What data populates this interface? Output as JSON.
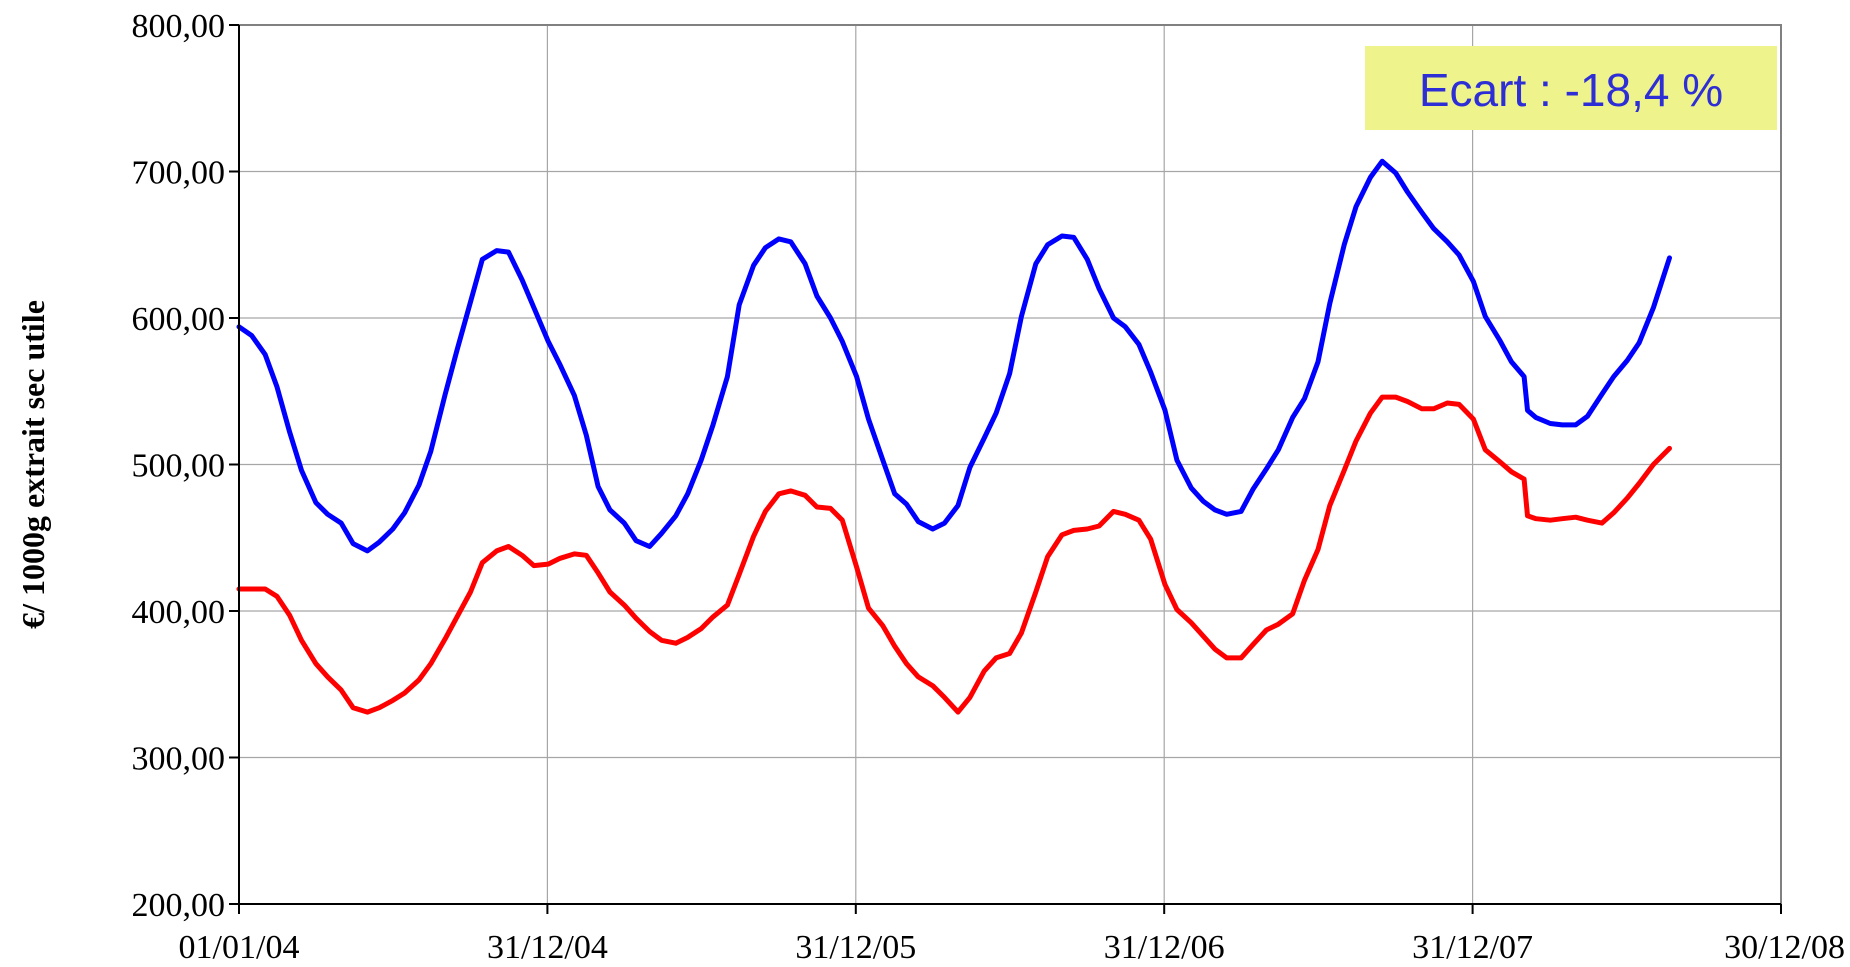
{
  "chart_data": {
    "type": "line",
    "title": "",
    "xlabel": "",
    "ylabel": "€/ 1000g extrait sec utile",
    "x_type": "date",
    "xlim": [
      "2004-01-01",
      "2008-12-30"
    ],
    "ylim": [
      200,
      800
    ],
    "y_ticks": [
      200,
      300,
      400,
      500,
      600,
      700,
      800
    ],
    "y_tick_labels": [
      "200,00",
      "300,00",
      "400,00",
      "500,00",
      "600,00",
      "700,00",
      "800,00"
    ],
    "x_ticks": [
      "2004-01-01",
      "2004-12-31",
      "2005-12-31",
      "2006-12-31",
      "2007-12-31",
      "2008-12-30"
    ],
    "x_tick_labels": [
      "01/01/04",
      "31/12/04",
      "31/12/05",
      "31/12/06",
      "31/12/07",
      "30/12/08"
    ],
    "grid": true,
    "legend": "none",
    "annotation": {
      "text": "Ecart : -18,4 %",
      "position": "top-right",
      "background": "#eef38c",
      "color": "#2e2ed6"
    },
    "series": [
      {
        "color": "#0000ff",
        "points": [
          [
            "2004-01-01",
            594
          ],
          [
            "2004-01-16",
            588
          ],
          [
            "2004-02-01",
            575
          ],
          [
            "2004-02-15",
            553
          ],
          [
            "2004-03-01",
            522
          ],
          [
            "2004-03-15",
            496
          ],
          [
            "2004-04-01",
            474
          ],
          [
            "2004-04-15",
            466
          ],
          [
            "2004-05-01",
            460
          ],
          [
            "2004-05-15",
            446
          ],
          [
            "2004-06-01",
            441
          ],
          [
            "2004-06-15",
            447
          ],
          [
            "2004-07-01",
            456
          ],
          [
            "2004-07-15",
            467
          ],
          [
            "2004-08-01",
            486
          ],
          [
            "2004-08-15",
            509
          ],
          [
            "2004-09-01",
            548
          ],
          [
            "2004-09-15",
            578
          ],
          [
            "2004-10-01",
            611
          ],
          [
            "2004-10-15",
            640
          ],
          [
            "2004-11-01",
            646
          ],
          [
            "2004-11-15",
            645
          ],
          [
            "2004-12-01",
            626
          ],
          [
            "2004-12-15",
            607
          ],
          [
            "2005-01-01",
            584
          ],
          [
            "2005-01-15",
            568
          ],
          [
            "2005-02-01",
            547
          ],
          [
            "2005-02-15",
            520
          ],
          [
            "2005-03-01",
            485
          ],
          [
            "2005-03-15",
            469
          ],
          [
            "2005-04-01",
            460
          ],
          [
            "2005-04-15",
            448
          ],
          [
            "2005-05-01",
            444
          ],
          [
            "2005-05-15",
            453
          ],
          [
            "2005-06-01",
            465
          ],
          [
            "2005-06-15",
            480
          ],
          [
            "2005-07-01",
            503
          ],
          [
            "2005-07-15",
            527
          ],
          [
            "2005-08-01",
            560
          ],
          [
            "2005-08-15",
            609
          ],
          [
            "2005-09-01",
            636
          ],
          [
            "2005-09-15",
            648
          ],
          [
            "2005-10-01",
            654
          ],
          [
            "2005-10-15",
            652
          ],
          [
            "2005-11-01",
            637
          ],
          [
            "2005-11-15",
            615
          ],
          [
            "2005-12-01",
            600
          ],
          [
            "2005-12-15",
            584
          ],
          [
            "2006-01-01",
            560
          ],
          [
            "2006-01-15",
            531
          ],
          [
            "2006-02-01",
            503
          ],
          [
            "2006-02-15",
            480
          ],
          [
            "2006-03-01",
            473
          ],
          [
            "2006-03-15",
            461
          ],
          [
            "2006-04-01",
            456
          ],
          [
            "2006-04-15",
            460
          ],
          [
            "2006-05-01",
            472
          ],
          [
            "2006-05-15",
            498
          ],
          [
            "2006-06-01",
            518
          ],
          [
            "2006-06-15",
            535
          ],
          [
            "2006-07-01",
            562
          ],
          [
            "2006-07-15",
            601
          ],
          [
            "2006-08-01",
            637
          ],
          [
            "2006-08-15",
            650
          ],
          [
            "2006-09-01",
            656
          ],
          [
            "2006-09-15",
            655
          ],
          [
            "2006-10-01",
            640
          ],
          [
            "2006-10-15",
            620
          ],
          [
            "2006-11-01",
            600
          ],
          [
            "2006-11-15",
            594
          ],
          [
            "2006-12-01",
            582
          ],
          [
            "2006-12-15",
            563
          ],
          [
            "2007-01-01",
            537
          ],
          [
            "2007-01-15",
            503
          ],
          [
            "2007-02-01",
            484
          ],
          [
            "2007-02-15",
            475
          ],
          [
            "2007-03-01",
            469
          ],
          [
            "2007-03-15",
            466
          ],
          [
            "2007-04-01",
            468
          ],
          [
            "2007-04-15",
            483
          ],
          [
            "2007-05-01",
            497
          ],
          [
            "2007-05-15",
            510
          ],
          [
            "2007-06-01",
            532
          ],
          [
            "2007-06-15",
            545
          ],
          [
            "2007-07-01",
            570
          ],
          [
            "2007-07-15",
            610
          ],
          [
            "2007-08-01",
            650
          ],
          [
            "2007-08-15",
            676
          ],
          [
            "2007-09-01",
            696
          ],
          [
            "2007-09-15",
            707
          ],
          [
            "2007-10-01",
            699
          ],
          [
            "2007-10-15",
            686
          ],
          [
            "2007-11-01",
            672
          ],
          [
            "2007-11-15",
            661
          ],
          [
            "2007-12-01",
            652
          ],
          [
            "2007-12-15",
            643
          ],
          [
            "2008-01-01",
            625
          ],
          [
            "2008-01-15",
            601
          ],
          [
            "2008-02-01",
            585
          ],
          [
            "2008-02-15",
            570
          ],
          [
            "2008-03-01",
            560
          ],
          [
            "2008-03-05",
            537
          ],
          [
            "2008-03-15",
            532
          ],
          [
            "2008-04-01",
            528
          ],
          [
            "2008-04-15",
            527
          ],
          [
            "2008-05-01",
            527
          ],
          [
            "2008-05-15",
            533
          ],
          [
            "2008-06-01",
            548
          ],
          [
            "2008-06-15",
            560
          ],
          [
            "2008-07-01",
            571
          ],
          [
            "2008-07-15",
            583
          ],
          [
            "2008-08-01",
            607
          ],
          [
            "2008-08-20",
            641
          ]
        ]
      },
      {
        "color": "#ff0000",
        "points": [
          [
            "2004-01-01",
            415
          ],
          [
            "2004-01-15",
            415
          ],
          [
            "2004-02-01",
            415
          ],
          [
            "2004-02-15",
            410
          ],
          [
            "2004-03-01",
            397
          ],
          [
            "2004-03-15",
            380
          ],
          [
            "2004-04-01",
            364
          ],
          [
            "2004-04-15",
            355
          ],
          [
            "2004-05-01",
            346
          ],
          [
            "2004-05-15",
            334
          ],
          [
            "2004-06-01",
            331
          ],
          [
            "2004-06-15",
            334
          ],
          [
            "2004-07-01",
            339
          ],
          [
            "2004-07-15",
            344
          ],
          [
            "2004-08-01",
            353
          ],
          [
            "2004-08-15",
            364
          ],
          [
            "2004-09-01",
            381
          ],
          [
            "2004-09-15",
            396
          ],
          [
            "2004-10-01",
            413
          ],
          [
            "2004-10-15",
            433
          ],
          [
            "2004-11-01",
            441
          ],
          [
            "2004-11-15",
            444
          ],
          [
            "2004-12-01",
            438
          ],
          [
            "2004-12-15",
            431
          ],
          [
            "2005-01-01",
            432
          ],
          [
            "2005-01-15",
            436
          ],
          [
            "2005-02-01",
            439
          ],
          [
            "2005-02-15",
            438
          ],
          [
            "2005-03-01",
            426
          ],
          [
            "2005-03-15",
            413
          ],
          [
            "2005-04-01",
            404
          ],
          [
            "2005-04-15",
            395
          ],
          [
            "2005-05-01",
            386
          ],
          [
            "2005-05-15",
            380
          ],
          [
            "2005-06-01",
            378
          ],
          [
            "2005-06-15",
            382
          ],
          [
            "2005-07-01",
            388
          ],
          [
            "2005-07-15",
            396
          ],
          [
            "2005-08-01",
            404
          ],
          [
            "2005-08-15",
            425
          ],
          [
            "2005-09-01",
            451
          ],
          [
            "2005-09-15",
            468
          ],
          [
            "2005-10-01",
            480
          ],
          [
            "2005-10-15",
            482
          ],
          [
            "2005-11-01",
            479
          ],
          [
            "2005-11-15",
            471
          ],
          [
            "2005-12-01",
            470
          ],
          [
            "2005-12-15",
            462
          ],
          [
            "2006-01-01",
            430
          ],
          [
            "2006-01-15",
            402
          ],
          [
            "2006-02-01",
            390
          ],
          [
            "2006-02-15",
            376
          ],
          [
            "2006-03-01",
            364
          ],
          [
            "2006-03-15",
            355
          ],
          [
            "2006-04-01",
            349
          ],
          [
            "2006-04-15",
            341
          ],
          [
            "2006-05-01",
            331
          ],
          [
            "2006-05-15",
            341
          ],
          [
            "2006-06-01",
            359
          ],
          [
            "2006-06-15",
            368
          ],
          [
            "2006-07-01",
            371
          ],
          [
            "2006-07-15",
            385
          ],
          [
            "2006-08-01",
            413
          ],
          [
            "2006-08-15",
            437
          ],
          [
            "2006-09-01",
            452
          ],
          [
            "2006-09-15",
            455
          ],
          [
            "2006-10-01",
            456
          ],
          [
            "2006-10-15",
            458
          ],
          [
            "2006-11-01",
            468
          ],
          [
            "2006-11-15",
            466
          ],
          [
            "2006-12-01",
            462
          ],
          [
            "2006-12-15",
            449
          ],
          [
            "2007-01-01",
            418
          ],
          [
            "2007-01-15",
            401
          ],
          [
            "2007-02-01",
            392
          ],
          [
            "2007-02-15",
            383
          ],
          [
            "2007-03-01",
            374
          ],
          [
            "2007-03-15",
            368
          ],
          [
            "2007-04-01",
            368
          ],
          [
            "2007-04-15",
            377
          ],
          [
            "2007-05-01",
            387
          ],
          [
            "2007-05-15",
            391
          ],
          [
            "2007-06-01",
            398
          ],
          [
            "2007-06-15",
            421
          ],
          [
            "2007-07-01",
            442
          ],
          [
            "2007-07-15",
            472
          ],
          [
            "2007-08-01",
            496
          ],
          [
            "2007-08-15",
            516
          ],
          [
            "2007-09-01",
            535
          ],
          [
            "2007-09-15",
            546
          ],
          [
            "2007-10-01",
            546
          ],
          [
            "2007-10-15",
            543
          ],
          [
            "2007-11-01",
            538
          ],
          [
            "2007-11-15",
            538
          ],
          [
            "2007-12-01",
            542
          ],
          [
            "2007-12-15",
            541
          ],
          [
            "2008-01-01",
            531
          ],
          [
            "2008-01-15",
            510
          ],
          [
            "2008-02-01",
            502
          ],
          [
            "2008-02-15",
            495
          ],
          [
            "2008-03-01",
            490
          ],
          [
            "2008-03-05",
            465
          ],
          [
            "2008-03-15",
            463
          ],
          [
            "2008-04-01",
            462
          ],
          [
            "2008-04-15",
            463
          ],
          [
            "2008-05-01",
            464
          ],
          [
            "2008-05-15",
            462
          ],
          [
            "2008-06-01",
            460
          ],
          [
            "2008-06-15",
            467
          ],
          [
            "2008-07-01",
            477
          ],
          [
            "2008-07-15",
            487
          ],
          [
            "2008-08-01",
            500
          ],
          [
            "2008-08-20",
            511
          ]
        ]
      }
    ]
  }
}
